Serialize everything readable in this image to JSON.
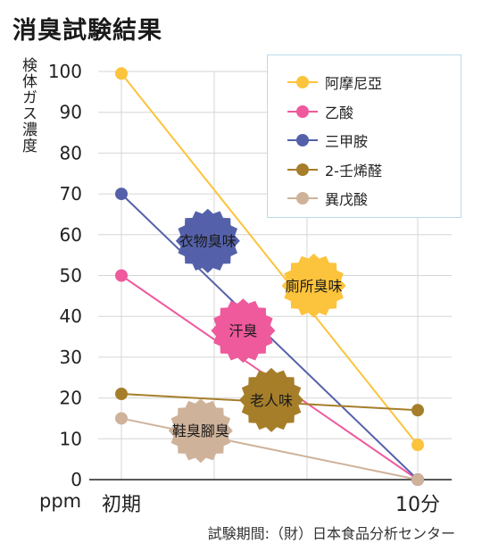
{
  "page": {
    "title": "消臭試験結果",
    "ylabel": "検体ガス濃度",
    "unit": "ppm",
    "footer": "試験期間:（財）日本食品分析センター"
  },
  "chart_data": {
    "type": "line",
    "title": "消臭試験結果",
    "ylabel": "検体ガス濃度",
    "xlabel": "",
    "x": [
      "初期",
      "10分"
    ],
    "ylim": [
      0,
      100
    ],
    "yticks": [
      0,
      10,
      20,
      30,
      40,
      50,
      60,
      70,
      80,
      90,
      100
    ],
    "grid": true,
    "legend_position": "top-right",
    "series": [
      {
        "name": "阿摩尼亞",
        "color": "#fcc33c",
        "values": [
          99.5,
          8.5
        ]
      },
      {
        "name": "乙酸",
        "color": "#ee5a9c",
        "values": [
          50,
          0
        ]
      },
      {
        "name": "三甲胺",
        "color": "#5461aa",
        "values": [
          70,
          0
        ]
      },
      {
        "name": "2-壬烯醛",
        "color": "#a67e2a",
        "values": [
          21,
          17
        ]
      },
      {
        "name": "異戊酸",
        "color": "#cfb29a",
        "values": [
          15,
          0
        ]
      }
    ],
    "annotations": [
      {
        "text": "衣物臭味",
        "series": "三甲胺",
        "x_frac": 0.31,
        "y": 58.5
      },
      {
        "text": "廁所臭味",
        "series": "阿摩尼亞",
        "x_frac": 0.61,
        "y": 47.5
      },
      {
        "text": "汗臭",
        "series": "乙酸",
        "x_frac": 0.41,
        "y": 36.5
      },
      {
        "text": "老人味",
        "series": "2-壬烯醛",
        "x_frac": 0.49,
        "y": 19.5
      },
      {
        "text": "鞋臭腳臭",
        "series": "異戊酸",
        "x_frac": 0.29,
        "y": 12
      }
    ]
  }
}
